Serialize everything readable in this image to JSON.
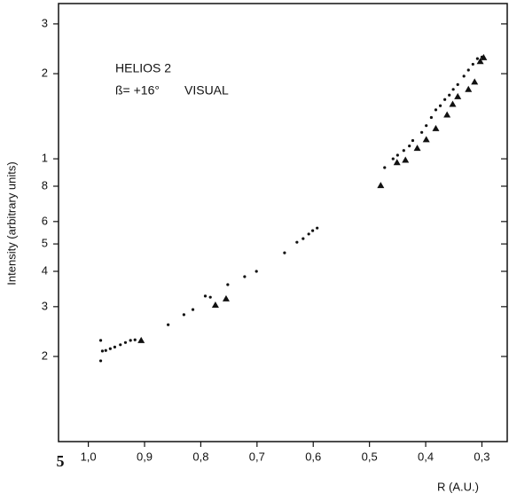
{
  "chart_data": {
    "type": "scatter",
    "page_number": "5",
    "annotations": [
      "HELIOS 2",
      "ß= +16°",
      "VISUAL"
    ],
    "x_label": "R (A.U.)",
    "y_label": "Intensity (arbitrary units)",
    "xlim": [
      1.053,
      0.255
    ],
    "ylim": [
      0.1,
      3.54
    ],
    "log_y": true,
    "xticks": [
      {
        "value": 1.0,
        "label": "1,0"
      },
      {
        "value": 0.9,
        "label": "0,9"
      },
      {
        "value": 0.8,
        "label": "0,8"
      },
      {
        "value": 0.7,
        "label": "0,7"
      },
      {
        "value": 0.6,
        "label": "0,6"
      },
      {
        "value": 0.5,
        "label": "0,5"
      },
      {
        "value": 0.4,
        "label": "0,4"
      },
      {
        "value": 0.3,
        "label": "0,3"
      }
    ],
    "yticks": [
      {
        "value": 0.2,
        "label": "2"
      },
      {
        "value": 0.3,
        "label": "3"
      },
      {
        "value": 0.4,
        "label": "4"
      },
      {
        "value": 0.5,
        "label": "5"
      },
      {
        "value": 0.6,
        "label": "6"
      },
      {
        "value": 0.8,
        "label": "8"
      },
      1,
      2,
      3
    ],
    "series": [
      {
        "marker": "dot",
        "color": "#111111",
        "x": [
          0.978,
          0.978,
          0.975,
          0.969,
          0.961,
          0.953,
          0.943,
          0.934,
          0.925,
          0.917,
          0.858,
          0.83,
          0.814,
          0.792,
          0.783,
          0.752,
          0.722,
          0.701,
          0.651,
          0.629,
          0.618,
          0.608,
          0.601,
          0.593,
          0.473,
          0.458,
          0.45,
          0.439,
          0.429,
          0.423,
          0.407,
          0.399,
          0.39,
          0.382,
          0.374,
          0.366,
          0.358,
          0.351,
          0.343,
          0.332,
          0.324,
          0.316,
          0.308,
          0.3
        ],
        "values": [
          0.228,
          0.193,
          0.209,
          0.21,
          0.213,
          0.216,
          0.22,
          0.224,
          0.228,
          0.229,
          0.259,
          0.281,
          0.293,
          0.327,
          0.324,
          0.359,
          0.383,
          0.4,
          0.465,
          0.507,
          0.522,
          0.542,
          0.557,
          0.569,
          0.931,
          1.0,
          1.03,
          1.07,
          1.11,
          1.16,
          1.24,
          1.31,
          1.4,
          1.49,
          1.54,
          1.62,
          1.68,
          1.76,
          1.83,
          1.96,
          2.06,
          2.16,
          2.26,
          2.29
        ]
      },
      {
        "marker": "triangle",
        "color": "#111111",
        "x": [
          0.906,
          0.774,
          0.755,
          0.48,
          0.451,
          0.436,
          0.415,
          0.399,
          0.382,
          0.362,
          0.352,
          0.343,
          0.324,
          0.313,
          0.303,
          0.297
        ],
        "values": [
          0.228,
          0.304,
          0.32,
          0.805,
          0.97,
          0.99,
          1.09,
          1.17,
          1.28,
          1.43,
          1.56,
          1.66,
          1.76,
          1.87,
          2.21,
          2.28
        ]
      }
    ]
  }
}
